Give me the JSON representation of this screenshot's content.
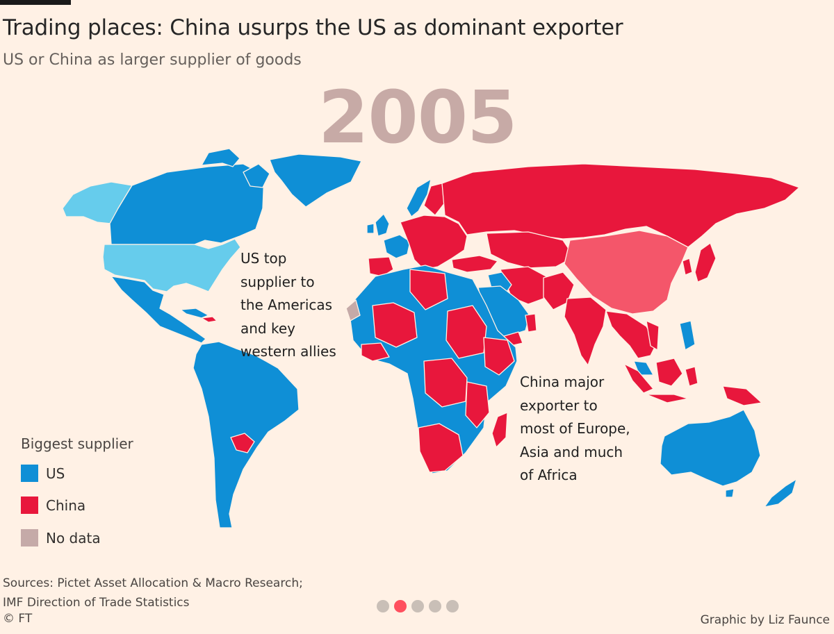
{
  "title": "Trading places: China usurps the US as dominant exporter",
  "subtitle": "US or China as larger supplier of goods",
  "year": "2005",
  "annotations": {
    "us": [
      "US top",
      "supplier to",
      "the Americas",
      "and key",
      "western allies"
    ],
    "china": [
      "China major",
      "exporter to",
      "most of Europe,",
      "Asia and much",
      "of Africa"
    ]
  },
  "legend": {
    "title": "Biggest supplier",
    "items": [
      {
        "label": "US",
        "color": "#0f8fd6"
      },
      {
        "label": "China",
        "color": "#e8173c"
      },
      {
        "label": "No data",
        "color": "#c5aaa8"
      }
    ]
  },
  "colors": {
    "us": "#0f8fd6",
    "china": "#e8173c",
    "us_self": "#66ccec",
    "china_self": "#f4566a",
    "no_data": "#c5aaa8",
    "background": "#fff1e5"
  },
  "sources": [
    "Sources: Pictet Asset Allocation & Macro Research;",
    "IMF Direction of Trade Statistics"
  ],
  "copyright": "© FT",
  "credit": "Graphic by Liz Faunce",
  "pagination": {
    "count": 5,
    "active": 2
  }
}
